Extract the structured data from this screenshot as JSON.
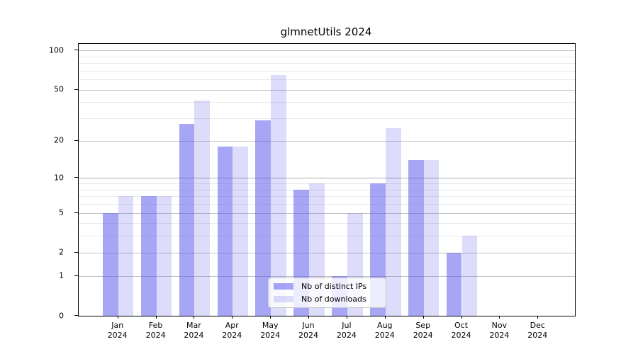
{
  "chart_data": {
    "type": "bar",
    "title": "glmnetUtils 2024",
    "year": "2024",
    "categories": [
      "Jan",
      "Feb",
      "Mar",
      "Apr",
      "May",
      "Jun",
      "Jul",
      "Aug",
      "Sep",
      "Oct",
      "Nov",
      "Dec"
    ],
    "series": [
      {
        "name": "Nb of distinct IPs",
        "color": "rgba(85,85,235,0.52)",
        "values": [
          5,
          7,
          27,
          18,
          29,
          8,
          1,
          9,
          14,
          2,
          0,
          0
        ]
      },
      {
        "name": "Nb of downloads",
        "color": "rgba(85,85,235,0.20)",
        "values": [
          7,
          7,
          41,
          18,
          65,
          9,
          5,
          25,
          14,
          3,
          0,
          0
        ]
      }
    ],
    "xlabel": "",
    "ylabel": "",
    "yscale": "log1p",
    "yticks": [
      0,
      1,
      2,
      5,
      10,
      20,
      50,
      100
    ],
    "minor_yticks": [
      3,
      4,
      6,
      7,
      8,
      9,
      30,
      40,
      60,
      70,
      80,
      90
    ],
    "ylim": [
      0,
      112
    ],
    "grid": "horizontal-major-and-minor",
    "legend_position": "lower center"
  }
}
